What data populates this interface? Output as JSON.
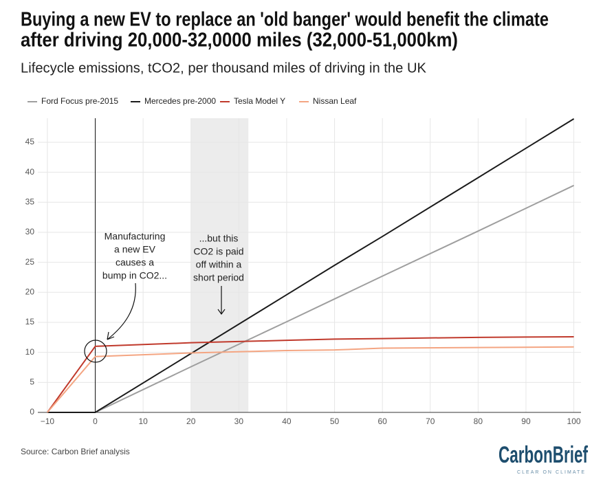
{
  "chart_data": {
    "type": "line",
    "title": [
      "Buying a new EV to replace an 'old banger' would benefit the climate",
      "after driving 20,000-32,0000 miles (32,000-51,000km)"
    ],
    "subtitle": "Lifecycle emissions, tCO2, per thousand miles of driving in the UK",
    "x": [
      -10,
      0,
      20,
      40,
      50,
      60,
      80,
      100
    ],
    "series": [
      {
        "name": "Ford Focus pre-2015",
        "color": "#9e9e9e",
        "values": [
          0,
          0,
          7.6,
          15.1,
          18.9,
          22.7,
          30.2,
          37.8
        ]
      },
      {
        "name": "Mercedes pre-2000",
        "color": "#1a1a1a",
        "values": [
          0,
          0,
          9.8,
          19.6,
          24.5,
          29.3,
          39.1,
          48.9
        ]
      },
      {
        "name": "Tesla Model Y",
        "color": "#c0392b",
        "values": [
          0,
          11,
          11.6,
          12,
          12.2,
          12.3,
          12.5,
          12.6
        ]
      },
      {
        "name": "Nissan Leaf",
        "color": "#f4a582",
        "values": [
          0,
          9.3,
          9.9,
          10.3,
          10.4,
          10.7,
          10.8,
          10.9
        ]
      }
    ],
    "xlim": [
      -12,
      101.5
    ],
    "xticks": [
      {
        "value": -10,
        "label": "−10"
      },
      0,
      10,
      20,
      30,
      40,
      50,
      60,
      70,
      80,
      90,
      100
    ],
    "ylim": [
      0,
      49
    ],
    "yticks": [
      0,
      5,
      10,
      15,
      20,
      25,
      30,
      35,
      40,
      45
    ],
    "grid": true,
    "legend": "top-left",
    "shaded_range": [
      20,
      32
    ],
    "vertical_line": 0,
    "annotations": [
      [
        "Manufacturing",
        "a new EV",
        "causes a",
        "bump in CO2..."
      ],
      [
        "...but this",
        "CO2 is paid",
        "off within a",
        "short period"
      ]
    ],
    "source": "Source: Carbon Brief analysis",
    "logo": "CarbonBrief",
    "logo_tagline": "CLEAR ON CLIMATE"
  }
}
